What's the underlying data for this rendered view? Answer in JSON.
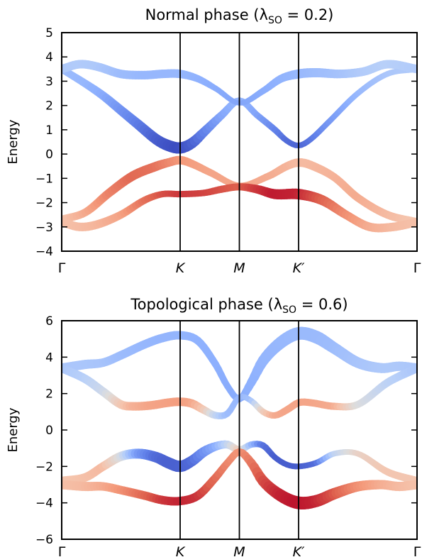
{
  "chart_data": [
    {
      "type": "line",
      "title": "Normal phase (λ",
      "title_sub": "SO",
      "title_rest": " = 0.2)",
      "xlabel": "",
      "ylabel": "Energy",
      "ylim": [
        -4,
        5
      ],
      "yticks": [
        -4,
        -3,
        -2,
        -1,
        0,
        1,
        2,
        3,
        4,
        5
      ],
      "ytick_labels": [
        "−4",
        "−3",
        "−2",
        "−1",
        "0",
        "1",
        "2",
        "3",
        "4",
        "5"
      ],
      "xticks": [
        "Γ",
        "K",
        "M",
        "K′",
        "Γ"
      ],
      "x_positions": [
        0,
        1,
        1.5,
        2,
        3
      ],
      "vertical_lines_at": [
        "K",
        "M",
        "K′"
      ],
      "grid": false,
      "colormap": "coolwarm",
      "series": [
        {
          "x": [
            0,
            0.2,
            0.35,
            0.5,
            0.65,
            0.8,
            0.9,
            1.0,
            1.1,
            1.2,
            1.35,
            1.5,
            1.65,
            1.8,
            1.9,
            2.0,
            2.1,
            2.25,
            2.5,
            2.75,
            3.0
          ],
          "values": [
            3.5,
            2.9,
            2.4,
            1.8,
            1.2,
            0.6,
            0.35,
            0.25,
            0.45,
            0.9,
            1.6,
            2.2,
            1.6,
            1.0,
            0.55,
            0.35,
            0.6,
            1.3,
            2.5,
            3.3,
            3.5
          ],
          "color": [
            0.3,
            0.28,
            0.24,
            0.18,
            0.12,
            0.05,
            0.02,
            0.0,
            0.04,
            0.12,
            0.22,
            0.28,
            0.22,
            0.14,
            0.08,
            0.06,
            0.1,
            0.18,
            0.28,
            0.34,
            0.36
          ],
          "width": [
            10,
            11,
            12,
            13,
            14,
            15,
            16,
            16,
            15,
            13,
            11,
            9,
            9,
            9,
            8,
            8,
            8,
            8,
            8,
            8,
            8
          ]
        },
        {
          "x": [
            0,
            0.15,
            0.3,
            0.5,
            0.7,
            0.85,
            1.0,
            1.15,
            1.3,
            1.5,
            1.7,
            1.85,
            2.0,
            2.15,
            2.35,
            2.55,
            2.75,
            3.0
          ],
          "values": [
            3.5,
            3.7,
            3.6,
            3.3,
            3.25,
            3.3,
            3.3,
            3.1,
            2.7,
            2.1,
            2.6,
            3.1,
            3.3,
            3.35,
            3.3,
            3.4,
            3.7,
            3.5
          ],
          "color": [
            0.35,
            0.36,
            0.35,
            0.3,
            0.28,
            0.28,
            0.28,
            0.26,
            0.24,
            0.22,
            0.24,
            0.26,
            0.28,
            0.3,
            0.32,
            0.36,
            0.38,
            0.36
          ],
          "width": [
            12,
            12,
            12,
            12,
            12,
            12,
            12,
            10,
            8,
            7,
            9,
            11,
            13,
            13,
            12,
            12,
            12,
            12
          ]
        },
        {
          "x": [
            0,
            0.2,
            0.4,
            0.6,
            0.8,
            0.9,
            1.0,
            1.1,
            1.25,
            1.5,
            1.75,
            1.9,
            2.0,
            2.1,
            2.3,
            2.5,
            2.75,
            3.0
          ],
          "values": [
            -2.7,
            -2.4,
            -1.6,
            -0.9,
            -0.5,
            -0.35,
            -0.25,
            -0.4,
            -0.75,
            -1.3,
            -0.9,
            -0.5,
            -0.35,
            -0.45,
            -0.95,
            -1.8,
            -2.5,
            -2.8
          ],
          "color": [
            0.62,
            0.7,
            0.8,
            0.86,
            0.84,
            0.8,
            0.76,
            0.74,
            0.72,
            0.72,
            0.7,
            0.68,
            0.66,
            0.66,
            0.68,
            0.7,
            0.66,
            0.62
          ],
          "width": [
            11,
            11,
            12,
            13,
            13,
            12,
            12,
            11,
            10,
            8,
            10,
            11,
            12,
            12,
            11,
            11,
            11,
            11
          ]
        },
        {
          "x": [
            0,
            0.15,
            0.3,
            0.5,
            0.7,
            0.85,
            1.0,
            1.2,
            1.35,
            1.5,
            1.65,
            1.8,
            2.0,
            2.2,
            2.4,
            2.6,
            2.8,
            3.0
          ],
          "values": [
            -2.8,
            -3.0,
            -2.9,
            -2.5,
            -1.9,
            -1.65,
            -1.65,
            -1.6,
            -1.45,
            -1.35,
            -1.45,
            -1.65,
            -1.65,
            -1.9,
            -2.5,
            -3.0,
            -3.0,
            -2.8
          ],
          "color": [
            0.64,
            0.65,
            0.67,
            0.72,
            0.84,
            0.9,
            0.93,
            0.92,
            0.9,
            0.88,
            0.93,
            0.97,
            0.96,
            0.88,
            0.78,
            0.7,
            0.66,
            0.64
          ],
          "width": [
            12,
            12,
            12,
            11,
            10,
            9,
            9,
            9,
            10,
            10,
            12,
            14,
            15,
            14,
            12,
            12,
            12,
            12
          ]
        }
      ]
    },
    {
      "type": "line",
      "title": "Topological phase (λ",
      "title_sub": "SO",
      "title_rest": " = 0.6)",
      "xlabel": "",
      "ylabel": "Energy",
      "ylim": [
        -6,
        6
      ],
      "yticks": [
        -6,
        -4,
        -2,
        0,
        2,
        4,
        6
      ],
      "ytick_labels": [
        "−6",
        "−4",
        "−2",
        "0",
        "2",
        "4",
        "6"
      ],
      "xticks": [
        "Γ",
        "K",
        "M",
        "K′",
        "Γ"
      ],
      "x_positions": [
        0,
        1,
        1.5,
        2,
        3
      ],
      "vertical_lines_at": [
        "K",
        "M",
        "K′"
      ],
      "grid": false,
      "colormap": "coolwarm",
      "series": [
        {
          "x": [
            0,
            0.2,
            0.35,
            0.5,
            0.7,
            0.85,
            1.0,
            1.15,
            1.3,
            1.4,
            1.5,
            1.6,
            1.7,
            1.85,
            2.0,
            2.15,
            2.3,
            2.5,
            2.7,
            2.85,
            3.0
          ],
          "values": [
            3.4,
            3.6,
            3.7,
            4.1,
            4.7,
            5.05,
            5.2,
            4.9,
            3.6,
            2.4,
            1.7,
            2.6,
            3.8,
            4.8,
            5.3,
            5.1,
            4.5,
            3.7,
            3.4,
            3.5,
            3.4
          ],
          "color": [
            0.34,
            0.34,
            0.33,
            0.3,
            0.28,
            0.27,
            0.27,
            0.26,
            0.25,
            0.24,
            0.24,
            0.25,
            0.27,
            0.28,
            0.29,
            0.29,
            0.3,
            0.33,
            0.35,
            0.35,
            0.34
          ],
          "width": [
            13,
            13,
            12,
            12,
            12,
            12,
            12,
            11,
            10,
            9,
            9,
            12,
            15,
            17,
            18,
            18,
            16,
            15,
            14,
            13,
            13
          ]
        },
        {
          "x": [
            0,
            0.2,
            0.35,
            0.5,
            0.6,
            0.75,
            0.9,
            1.0,
            1.1,
            1.2,
            1.3,
            1.4,
            1.5,
            1.6,
            1.7,
            1.8,
            1.9,
            2.0,
            2.1,
            2.3,
            2.5,
            2.75,
            3.0
          ],
          "values": [
            3.4,
            2.8,
            2.1,
            1.4,
            1.3,
            1.35,
            1.5,
            1.55,
            1.45,
            1.1,
            0.8,
            0.9,
            1.8,
            1.6,
            1.0,
            0.8,
            1.1,
            1.5,
            1.5,
            1.3,
            1.4,
            2.6,
            3.4
          ],
          "color": [
            0.34,
            0.38,
            0.44,
            0.6,
            0.68,
            0.72,
            0.73,
            0.74,
            0.72,
            0.62,
            0.42,
            0.3,
            0.28,
            0.32,
            0.58,
            0.7,
            0.72,
            0.72,
            0.72,
            0.7,
            0.5,
            0.4,
            0.34
          ],
          "width": [
            12,
            12,
            12,
            12,
            12,
            12,
            12,
            12,
            12,
            11,
            10,
            9,
            8,
            8,
            9,
            9,
            10,
            10,
            10,
            10,
            10,
            11,
            12
          ]
        },
        {
          "x": [
            0,
            0.2,
            0.35,
            0.5,
            0.65,
            0.8,
            0.9,
            1.0,
            1.1,
            1.2,
            1.3,
            1.4,
            1.5,
            1.6,
            1.7,
            1.8,
            1.9,
            2.0,
            2.15,
            2.3,
            2.5,
            2.75,
            3.0
          ],
          "values": [
            -2.8,
            -2.6,
            -2.0,
            -1.45,
            -1.3,
            -1.5,
            -1.8,
            -2.0,
            -1.7,
            -1.2,
            -0.9,
            -0.8,
            -1.1,
            -0.8,
            -0.85,
            -1.5,
            -1.9,
            -2.0,
            -1.8,
            -1.3,
            -1.3,
            -2.3,
            -2.8
          ],
          "color": [
            0.62,
            0.64,
            0.66,
            0.5,
            0.2,
            0.08,
            0.05,
            0.05,
            0.07,
            0.16,
            0.24,
            0.4,
            0.6,
            0.3,
            0.1,
            0.04,
            0.04,
            0.04,
            0.08,
            0.4,
            0.56,
            0.62,
            0.62
          ],
          "width": [
            12,
            12,
            12,
            13,
            14,
            15,
            16,
            16,
            15,
            14,
            12,
            11,
            10,
            9,
            9,
            8,
            8,
            8,
            8,
            8,
            8,
            10,
            11
          ]
        },
        {
          "x": [
            0,
            0.2,
            0.35,
            0.5,
            0.7,
            0.85,
            1.0,
            1.15,
            1.3,
            1.4,
            1.5,
            1.6,
            1.7,
            1.85,
            2.0,
            2.15,
            2.3,
            2.5,
            2.7,
            2.85,
            3.0
          ],
          "values": [
            -3.0,
            -3.1,
            -3.1,
            -3.3,
            -3.6,
            -3.85,
            -3.9,
            -3.6,
            -2.6,
            -1.8,
            -1.2,
            -1.8,
            -2.8,
            -3.6,
            -4.0,
            -3.9,
            -3.5,
            -3.1,
            -3.0,
            -3.1,
            -3.0
          ],
          "color": [
            0.64,
            0.66,
            0.7,
            0.76,
            0.86,
            0.93,
            0.96,
            0.94,
            0.86,
            0.8,
            0.76,
            0.82,
            0.9,
            0.96,
            0.98,
            0.96,
            0.9,
            0.78,
            0.7,
            0.66,
            0.64
          ],
          "width": [
            13,
            13,
            12,
            12,
            12,
            12,
            12,
            12,
            11,
            10,
            10,
            12,
            15,
            17,
            18,
            17,
            16,
            14,
            13,
            13,
            13
          ]
        }
      ]
    }
  ]
}
